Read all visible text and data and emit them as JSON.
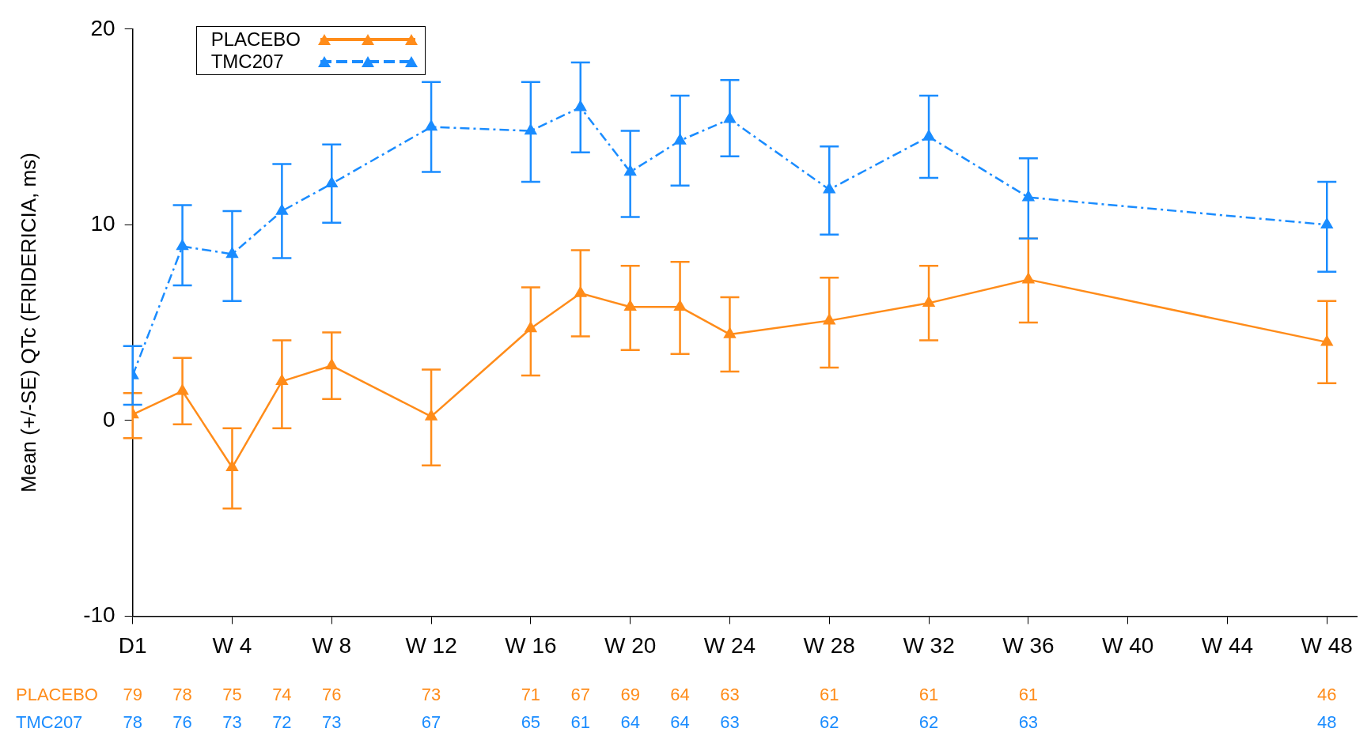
{
  "chart_data": {
    "type": "line",
    "ylabel": "Mean (+/-SE) QTc (FRIDERICIA, ms)",
    "ylim": [
      -10,
      20
    ],
    "categories": [
      "D1",
      null,
      "W 4",
      null,
      "W 8",
      null,
      "W 12",
      null,
      "W 16",
      null,
      "W 20",
      null,
      "W 24",
      null,
      "W 28",
      null,
      "W 32",
      null,
      "W 36",
      null,
      "W 40",
      null,
      "W 44",
      null,
      "W 48"
    ],
    "yticks": [
      -10,
      0,
      10,
      20
    ],
    "grid": false,
    "legend": "top left",
    "series": [
      {
        "name": "PLACEBO",
        "color": "#ff8c1a",
        "marker": "triangle",
        "line_style": "solid",
        "values": [
          0.3,
          1.5,
          -2.4,
          2.0,
          2.8,
          null,
          0.2,
          null,
          4.7,
          6.5,
          5.8,
          5.8,
          4.4,
          null,
          5.1,
          null,
          6.0,
          null,
          7.2,
          null,
          null,
          null,
          null,
          null,
          4.0
        ],
        "errors": [
          [
            -0.9,
            1.4
          ],
          [
            -0.2,
            3.2
          ],
          [
            -4.5,
            -0.4
          ],
          [
            -0.4,
            4.1
          ],
          [
            1.1,
            4.5
          ],
          null,
          [
            -2.3,
            2.6
          ],
          null,
          [
            2.3,
            6.8
          ],
          [
            4.3,
            8.7
          ],
          [
            3.6,
            7.9
          ],
          [
            3.4,
            8.1
          ],
          [
            2.5,
            6.3
          ],
          null,
          [
            2.7,
            7.3
          ],
          null,
          [
            4.1,
            7.9
          ],
          null,
          [
            5.0,
            9.3
          ],
          null,
          null,
          null,
          null,
          null,
          [
            1.9,
            6.1
          ]
        ]
      },
      {
        "name": "TMC207",
        "color": "#1a8cff",
        "marker": "triangle",
        "line_style": "dashed",
        "values": [
          2.3,
          8.9,
          8.5,
          10.7,
          12.1,
          null,
          15.0,
          null,
          14.8,
          16.0,
          12.7,
          14.3,
          15.4,
          null,
          11.8,
          null,
          14.5,
          null,
          11.4,
          null,
          null,
          null,
          null,
          null,
          10.0
        ],
        "errors": [
          [
            0.8,
            3.8
          ],
          [
            6.9,
            11.0
          ],
          [
            6.1,
            10.7
          ],
          [
            8.3,
            13.1
          ],
          [
            10.1,
            14.1
          ],
          null,
          [
            12.7,
            17.3
          ],
          null,
          [
            12.2,
            17.3
          ],
          [
            13.7,
            18.3
          ],
          [
            10.4,
            14.8
          ],
          [
            12.0,
            16.6
          ],
          [
            13.5,
            17.4
          ],
          null,
          [
            9.5,
            14.0
          ],
          null,
          [
            12.4,
            16.6
          ],
          null,
          [
            9.3,
            13.4
          ],
          null,
          null,
          null,
          null,
          null,
          [
            7.6,
            12.2
          ]
        ]
      }
    ],
    "annotations": [
      "PLACEBO",
      "79",
      "78",
      "75",
      "74",
      "76",
      "73",
      "71",
      "67",
      "69",
      "64",
      "63",
      "61",
      "61",
      "61",
      "46",
      "TMC207",
      "78",
      "76",
      "73",
      "72",
      "73",
      "67",
      "65",
      "61",
      "64",
      "64",
      "63",
      "62",
      "62",
      "63",
      "48"
    ]
  }
}
